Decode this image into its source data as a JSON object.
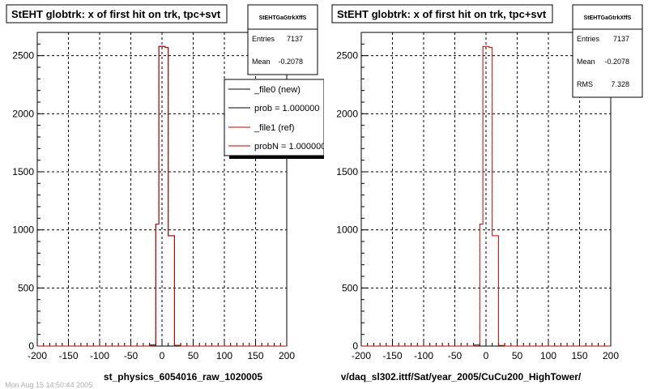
{
  "panels": [
    {
      "title": "StEHT globtrk: x of first hit on trk, tpc+svt",
      "xlabel": "st_physics_6054016_raw_1020005",
      "stats": {
        "name": "StEHTGaGtrkXffS",
        "rows": [
          {
            "label": "Entries",
            "value": "7137"
          },
          {
            "label": "Mean",
            "value": "-0.2078"
          }
        ]
      },
      "legend": [
        {
          "label": "_file0 (new)",
          "color": "#000000"
        },
        {
          "label": "prob = 1.000000",
          "color": "#000000"
        },
        {
          "label": "_file1 (ref)",
          "color": "#cc0000"
        },
        {
          "label": "probN = 1.000000",
          "color": "#cc0000"
        }
      ]
    },
    {
      "title": "StEHT globtrk: x of first hit on trk, tpc+svt",
      "xlabel": "v/daq_sl302.ittf/Sat/year_2005/CuCu200_HighTower/",
      "stats": {
        "name": "StEHTGaGtrkXffS",
        "rows": [
          {
            "label": "Entries",
            "value": "7137"
          },
          {
            "label": "Mean",
            "value": "-0.2078"
          },
          {
            "label": "RMS",
            "value": "7.328"
          }
        ]
      },
      "legend": []
    }
  ],
  "footer_text": "Mon Aug 15 14:50:44 2005",
  "chart_data": [
    {
      "type": "bar",
      "title": "StEHT globtrk: x of first hit on trk, tpc+svt",
      "xlabel": "st_physics_6054016_raw_1020005",
      "ylabel": "",
      "xlim": [
        -200,
        200
      ],
      "ylim": [
        0,
        2700
      ],
      "xticks": [
        -200,
        -150,
        -100,
        -50,
        0,
        50,
        100,
        150,
        200
      ],
      "yticks": [
        0,
        500,
        1000,
        1500,
        2000,
        2500
      ],
      "grid": true,
      "bin_width": 10,
      "series": [
        {
          "name": "_file0 (new)",
          "color": "#000000",
          "bins": [
            [
              -200,
              0
            ],
            [
              -190,
              0
            ],
            [
              -180,
              0
            ],
            [
              -170,
              0
            ],
            [
              -160,
              0
            ],
            [
              -150,
              0
            ],
            [
              -140,
              0
            ],
            [
              -130,
              0
            ],
            [
              -120,
              0
            ],
            [
              -110,
              0
            ],
            [
              -100,
              0
            ],
            [
              -90,
              0
            ],
            [
              -80,
              0
            ],
            [
              -70,
              0
            ],
            [
              -60,
              0
            ],
            [
              -50,
              0
            ],
            [
              -40,
              0
            ],
            [
              -30,
              0
            ],
            [
              -20,
              10
            ],
            [
              -10,
              1050
            ],
            [
              -5,
              2580
            ],
            [
              5,
              2570
            ],
            [
              10,
              950
            ],
            [
              20,
              5
            ],
            [
              30,
              0
            ],
            [
              40,
              0
            ],
            [
              50,
              0
            ],
            [
              60,
              0
            ],
            [
              70,
              0
            ],
            [
              80,
              0
            ],
            [
              90,
              0
            ],
            [
              100,
              0
            ],
            [
              110,
              0
            ],
            [
              120,
              0
            ],
            [
              130,
              0
            ],
            [
              140,
              0
            ],
            [
              150,
              0
            ],
            [
              160,
              0
            ],
            [
              170,
              0
            ],
            [
              180,
              0
            ],
            [
              190,
              0
            ]
          ]
        },
        {
          "name": "_file1 (ref)",
          "color": "#cc0000",
          "bins": [
            [
              -200,
              0
            ],
            [
              -190,
              0
            ],
            [
              -180,
              0
            ],
            [
              -170,
              0
            ],
            [
              -160,
              0
            ],
            [
              -150,
              0
            ],
            [
              -140,
              0
            ],
            [
              -130,
              0
            ],
            [
              -120,
              0
            ],
            [
              -110,
              0
            ],
            [
              -100,
              0
            ],
            [
              -90,
              0
            ],
            [
              -80,
              0
            ],
            [
              -70,
              0
            ],
            [
              -60,
              0
            ],
            [
              -50,
              0
            ],
            [
              -40,
              0
            ],
            [
              -30,
              0
            ],
            [
              -20,
              10
            ],
            [
              -10,
              1050
            ],
            [
              -5,
              2580
            ],
            [
              5,
              2570
            ],
            [
              10,
              950
            ],
            [
              20,
              5
            ],
            [
              30,
              0
            ],
            [
              40,
              0
            ],
            [
              50,
              0
            ],
            [
              60,
              0
            ],
            [
              70,
              0
            ],
            [
              80,
              0
            ],
            [
              90,
              0
            ],
            [
              100,
              0
            ],
            [
              110,
              0
            ],
            [
              120,
              0
            ],
            [
              130,
              0
            ],
            [
              140,
              0
            ],
            [
              150,
              0
            ],
            [
              160,
              0
            ],
            [
              170,
              0
            ],
            [
              180,
              0
            ],
            [
              190,
              0
            ]
          ]
        }
      ]
    },
    {
      "type": "bar",
      "title": "StEHT globtrk: x of first hit on trk, tpc+svt",
      "xlabel": "v/daq_sl302.ittf/Sat/year_2005/CuCu200_HighTower/",
      "ylabel": "",
      "xlim": [
        -200,
        200
      ],
      "ylim": [
        0,
        2700
      ],
      "xticks": [
        -200,
        -150,
        -100,
        -50,
        0,
        50,
        100,
        150,
        200
      ],
      "yticks": [
        0,
        500,
        1000,
        1500,
        2000,
        2500
      ],
      "grid": true,
      "bin_width": 10,
      "series": [
        {
          "name": "",
          "color": "#cc0000",
          "bins": [
            [
              -200,
              0
            ],
            [
              -190,
              0
            ],
            [
              -180,
              0
            ],
            [
              -170,
              0
            ],
            [
              -160,
              0
            ],
            [
              -150,
              0
            ],
            [
              -140,
              0
            ],
            [
              -130,
              0
            ],
            [
              -120,
              0
            ],
            [
              -110,
              0
            ],
            [
              -100,
              0
            ],
            [
              -90,
              0
            ],
            [
              -80,
              0
            ],
            [
              -70,
              0
            ],
            [
              -60,
              0
            ],
            [
              -50,
              0
            ],
            [
              -40,
              0
            ],
            [
              -30,
              0
            ],
            [
              -20,
              10
            ],
            [
              -10,
              1050
            ],
            [
              -5,
              2580
            ],
            [
              5,
              2570
            ],
            [
              10,
              950
            ],
            [
              20,
              5
            ],
            [
              30,
              0
            ],
            [
              40,
              0
            ],
            [
              50,
              0
            ],
            [
              60,
              0
            ],
            [
              70,
              0
            ],
            [
              80,
              0
            ],
            [
              90,
              0
            ],
            [
              100,
              0
            ],
            [
              110,
              0
            ],
            [
              120,
              0
            ],
            [
              130,
              0
            ],
            [
              140,
              0
            ],
            [
              150,
              0
            ],
            [
              160,
              0
            ],
            [
              170,
              0
            ],
            [
              180,
              0
            ],
            [
              190,
              0
            ]
          ]
        }
      ]
    }
  ]
}
